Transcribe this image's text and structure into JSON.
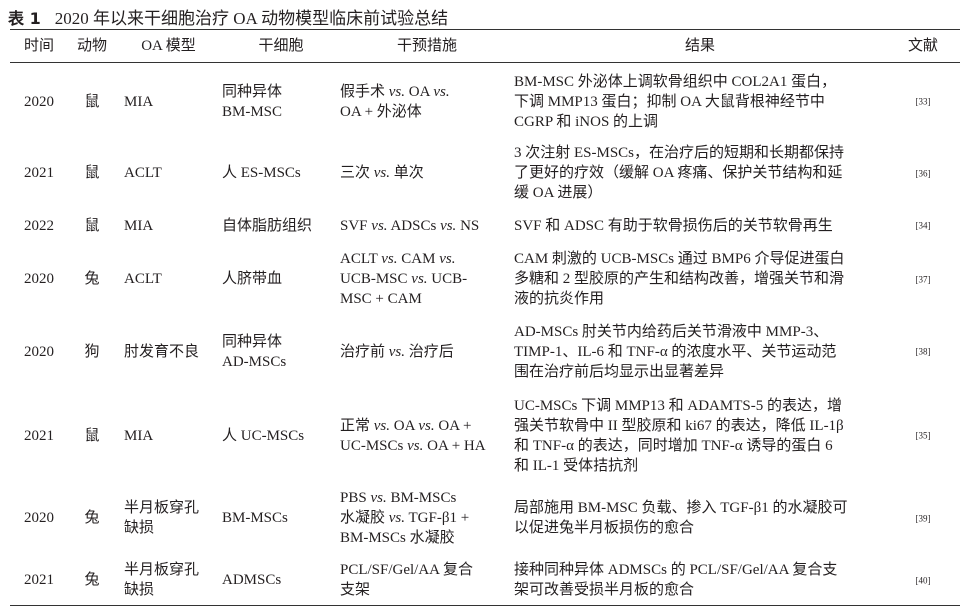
{
  "caption": {
    "label": "表 1",
    "text": "2020 年以来干细胞治疗 OA 动物模型临床前试验总结"
  },
  "headers": [
    "时间",
    "动物",
    "OA 模型",
    "干细胞",
    "干预措施",
    "结果",
    "文献"
  ],
  "rows": [
    {
      "year": "2020",
      "animal": "鼠",
      "model": [
        "MIA"
      ],
      "cell": [
        "同种异体",
        "BM-MSC"
      ],
      "intervention": [
        "假手术 vs. OA vs.",
        "OA + 外泌体"
      ],
      "result": [
        "BM-MSC 外泌体上调软骨组织中 COL2A1 蛋白，",
        "下调 MMP13 蛋白；抑制 OA 大鼠背根神经节中",
        "CGRP 和 iNOS 的上调"
      ],
      "ref": "[33]"
    },
    {
      "year": "2021",
      "animal": "鼠",
      "model": [
        "ACLT"
      ],
      "cell": [
        "人 ES-MSCs"
      ],
      "intervention": [
        "三次 vs. 单次"
      ],
      "result": [
        "3 次注射 ES-MSCs，在治疗后的短期和长期都保持",
        "了更好的疗效（缓解 OA 疼痛、保护关节结构和延",
        "缓 OA 进展）"
      ],
      "ref": "[36]"
    },
    {
      "year": "2022",
      "animal": "鼠",
      "model": [
        "MIA"
      ],
      "cell": [
        "自体脂肪组织"
      ],
      "intervention": [
        "SVF vs. ADSCs vs. NS"
      ],
      "result": [
        "SVF 和 ADSC 有助于软骨损伤后的关节软骨再生"
      ],
      "ref": "[34]"
    },
    {
      "year": "2020",
      "animal": "兔",
      "model": [
        "ACLT"
      ],
      "cell": [
        "人脐带血"
      ],
      "intervention": [
        "ACLT vs. CAM vs.",
        "UCB-MSC vs. UCB-",
        "MSC + CAM"
      ],
      "result": [
        "CAM 刺激的 UCB-MSCs 通过 BMP6 介导促进蛋白",
        "多糖和 2 型胶原的产生和结构改善，增强关节和滑",
        "液的抗炎作用"
      ],
      "ref": "[37]"
    },
    {
      "year": "2020",
      "animal": "狗",
      "model": [
        "肘发育不良"
      ],
      "cell": [
        "同种异体",
        "AD-MSCs"
      ],
      "intervention": [
        "治疗前 vs. 治疗后"
      ],
      "result": [
        "AD-MSCs 肘关节内给药后关节滑液中 MMP-3、",
        "TIMP-1、IL-6 和 TNF-α 的浓度水平、关节运动范",
        "围在治疗前后均显示出显著差异"
      ],
      "ref": "[38]"
    },
    {
      "year": "2021",
      "animal": "鼠",
      "model": [
        "MIA"
      ],
      "cell": [
        "人 UC-MSCs"
      ],
      "intervention": [
        "正常 vs. OA vs. OA +",
        "UC-MSCs vs. OA + HA"
      ],
      "result": [
        "UC-MSCs 下调 MMP13 和 ADAMTS-5 的表达，增",
        "强关节软骨中 II 型胶原和 ki67 的表达，降低 IL-1β",
        "和 TNF-α 的表达，同时增加 TNF-α 诱导的蛋白 6",
        "和 IL-1 受体拮抗剂"
      ],
      "ref": "[35]"
    },
    {
      "year": "2020",
      "animal": "兔",
      "model": [
        "半月板穿孔",
        "缺损"
      ],
      "cell": [
        "BM-MSCs"
      ],
      "intervention": [
        "PBS vs. BM-MSCs",
        "水凝胶 vs. TGF-β1 +",
        "BM-MSCs 水凝胶"
      ],
      "result": [
        "局部施用 BM-MSC 负载、掺入 TGF-β1 的水凝胶可",
        "以促进兔半月板损伤的愈合"
      ],
      "ref": "[39]"
    },
    {
      "year": "2021",
      "animal": "兔",
      "model": [
        "半月板穿孔",
        "缺损"
      ],
      "cell": [
        "ADMSCs"
      ],
      "intervention": [
        "PCL/SF/Gel/AA 复合",
        "支架"
      ],
      "result": [
        "接种同种异体 ADMSCs 的 PCL/SF/Gel/AA 复合支",
        "架可改善受损半月板的愈合"
      ],
      "ref": "[40]"
    }
  ]
}
